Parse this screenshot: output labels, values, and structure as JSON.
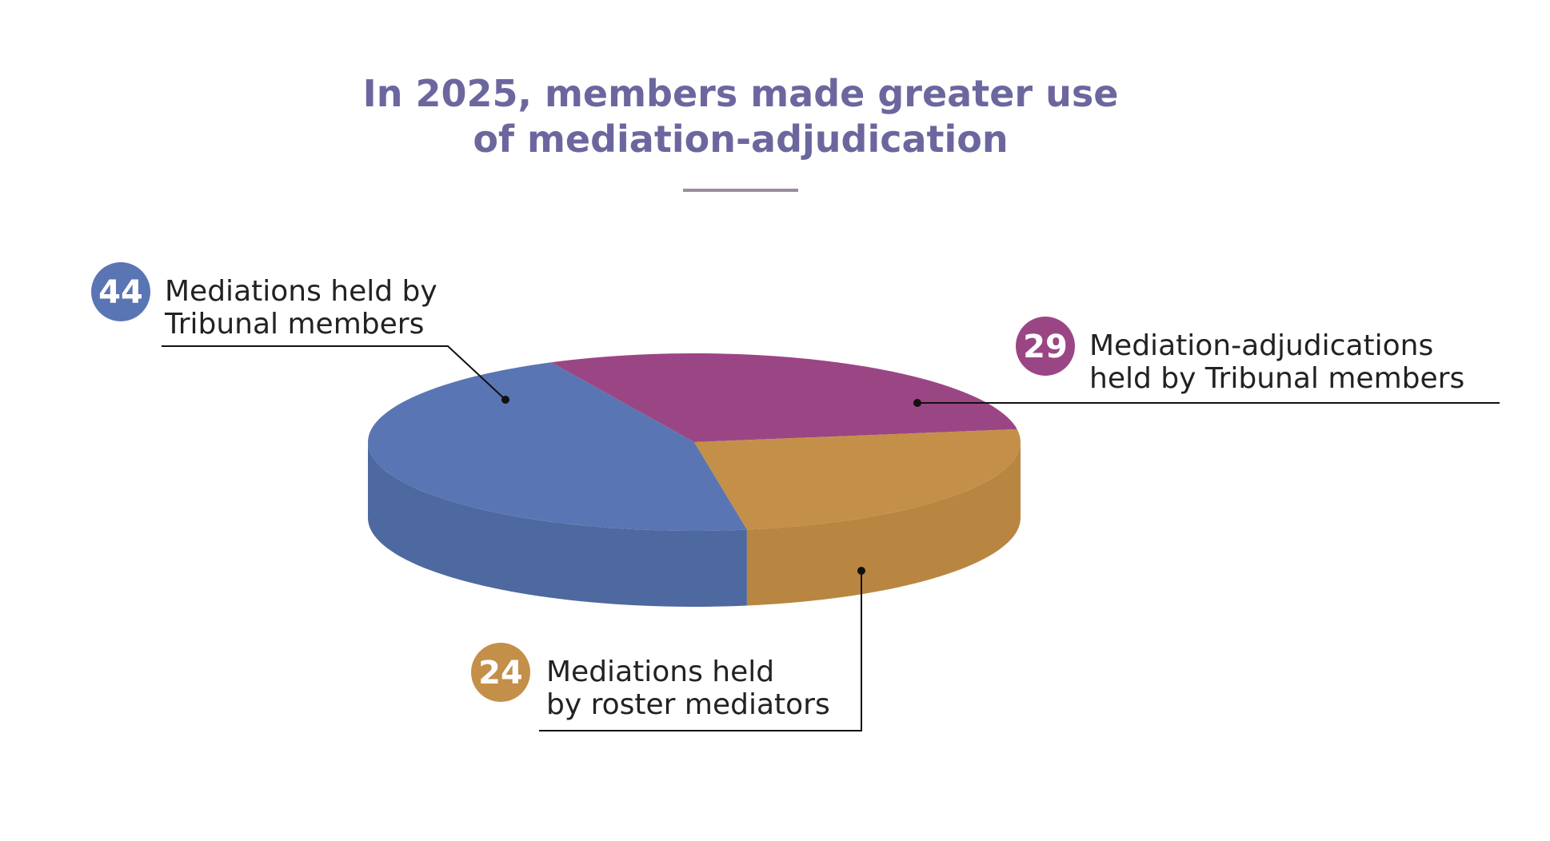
{
  "chart_data": {
    "type": "pie",
    "style": "3d",
    "title": [
      "In 2025, members made greater use",
      "of mediation-adjudication"
    ],
    "slices": [
      {
        "value": 44,
        "label": [
          "Mediations held by",
          "Tribunal members"
        ],
        "color": "#5a75b3",
        "side_color": "#4e69a0"
      },
      {
        "value": 29,
        "label": [
          "Mediation-adjudications",
          "held by Tribunal members"
        ],
        "color": "#9b4684",
        "side_color": "#8a3c75"
      },
      {
        "value": 24,
        "label": [
          "Mediations held",
          "by roster mediators"
        ],
        "color": "#c48f49",
        "side_color": "#b98641"
      }
    ],
    "legend": "none"
  },
  "colors": {
    "title": "#6b679e",
    "divider": "#9a8ca0",
    "text": "#222222"
  }
}
